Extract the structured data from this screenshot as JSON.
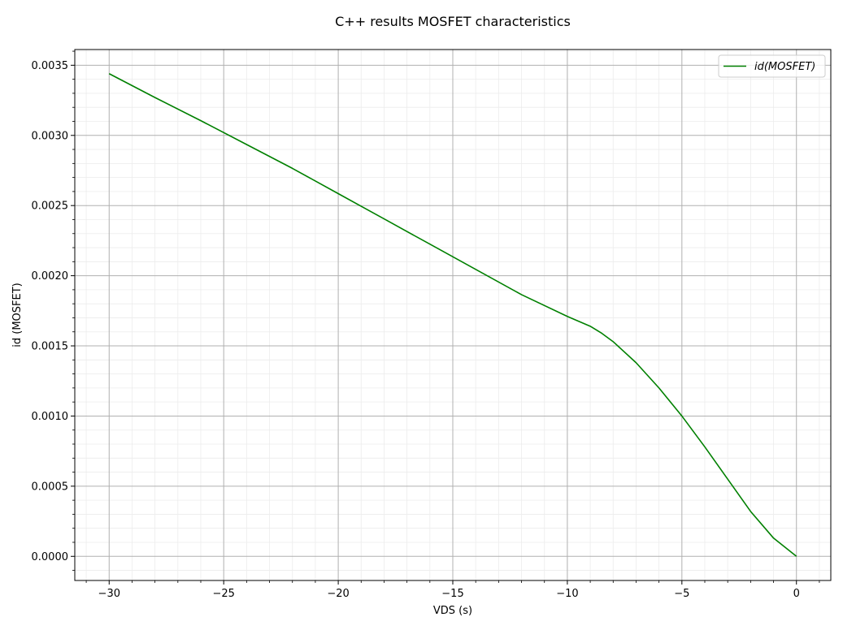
{
  "chart_data": {
    "type": "line",
    "title": "C++ results MOSFET characteristics",
    "xlabel": "VDS (s)",
    "ylabel": "id (MOSFET)",
    "xlim": [
      -31.5,
      1.5
    ],
    "ylim": [
      -0.000172,
      0.003612
    ],
    "xticks": [
      -30,
      -25,
      -20,
      -15,
      -10,
      -5,
      0
    ],
    "xtick_labels": [
      "−30",
      "−25",
      "−20",
      "−15",
      "−10",
      "−5",
      "0"
    ],
    "yticks": [
      0.0,
      0.0005,
      0.001,
      0.0015,
      0.002,
      0.0025,
      0.003,
      0.0035
    ],
    "ytick_labels": [
      "0.0000",
      "0.0005",
      "0.0010",
      "0.0015",
      "0.0020",
      "0.0025",
      "0.0030",
      "0.0035"
    ],
    "grid": true,
    "minor_grid": true,
    "legend_position": "top-right",
    "series": [
      {
        "name": "id(MOSFET)",
        "color": "#008000",
        "x": [
          -30,
          -28,
          -26,
          -24,
          -22,
          -20,
          -18,
          -16,
          -14,
          -12,
          -10,
          -9,
          -8.5,
          -8,
          -7,
          -6,
          -5,
          -4,
          -3,
          -2,
          -1,
          0
        ],
        "y": [
          0.00344,
          0.00327,
          0.003105,
          0.002935,
          0.002765,
          0.002585,
          0.002405,
          0.002225,
          0.002045,
          0.001865,
          0.00171,
          0.00164,
          0.00159,
          0.00153,
          0.00138,
          0.0012,
          0.001,
          0.00078,
          0.00055,
          0.00032,
          0.00013,
          0.0
        ]
      }
    ]
  }
}
